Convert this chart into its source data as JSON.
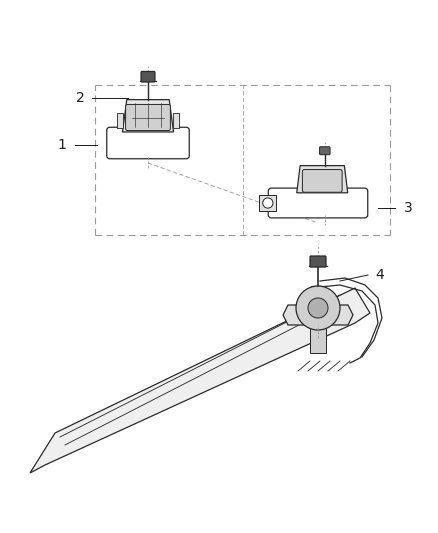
{
  "bg_color": "#ffffff",
  "line_color": "#2a2a2a",
  "dash_color": "#999999",
  "label_color": "#1a1a1a",
  "fig_width": 4.38,
  "fig_height": 5.33,
  "dpi": 100
}
